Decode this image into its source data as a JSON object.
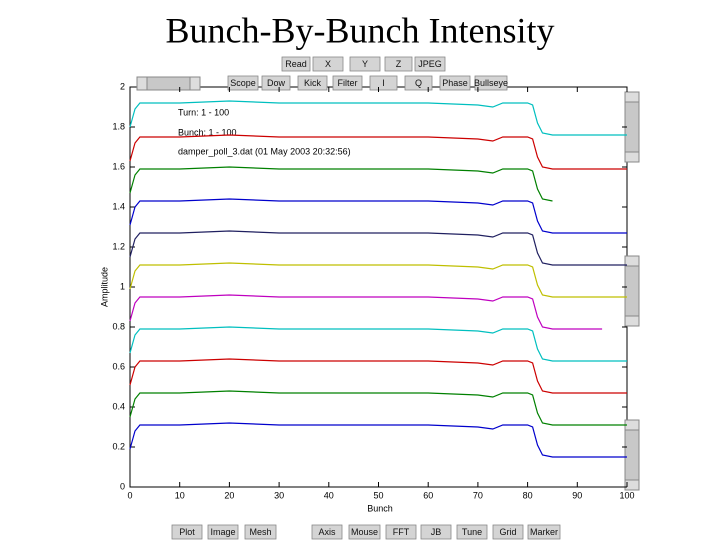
{
  "ui": {
    "top_buttons": [
      "Read",
      "X",
      "Y",
      "Z",
      "JPEG"
    ],
    "mode_buttons": [
      "Scope",
      "Dow",
      "Kick",
      "Filter",
      "I",
      "Q",
      "Phase",
      "Bullseye"
    ],
    "bottom_buttons": [
      "Plot",
      "Image",
      "Mesh",
      "Axis",
      "Mouse",
      "FFT",
      "JB",
      "Tune",
      "Grid",
      "Marker"
    ]
  },
  "chart_data": {
    "type": "line",
    "title": "Bunch-By-Bunch Intensity",
    "x_label": "Bunch",
    "y_label": "Amplitude",
    "annotations": [
      "Turn: 1 - 100",
      "Bunch: 1 - 100",
      "damper_poll_3.dat (01 May 2003 20:32:56)"
    ],
    "xlim": [
      0,
      100
    ],
    "xticks": [
      0,
      10,
      20,
      30,
      40,
      50,
      60,
      70,
      80,
      90,
      100
    ],
    "ylim": [
      0,
      2
    ],
    "yticks": [
      0,
      0.2,
      0.4,
      0.6,
      0.8,
      1,
      1.2,
      1.4,
      1.6,
      1.8,
      2
    ],
    "grid": false,
    "x": [
      0,
      1,
      2,
      10,
      20,
      30,
      40,
      50,
      60,
      70,
      73,
      75,
      80,
      81,
      82,
      83,
      85,
      90,
      95,
      100
    ],
    "series": [
      {
        "color": "#0000cc",
        "values": [
          0.19,
          0.28,
          0.31,
          0.31,
          0.32,
          0.31,
          0.31,
          0.31,
          0.31,
          0.3,
          0.29,
          0.31,
          0.31,
          0.3,
          0.21,
          0.16,
          0.15,
          0.15,
          0.15,
          0.15
        ]
      },
      {
        "color": "#008000",
        "values": [
          0.35,
          0.44,
          0.47,
          0.47,
          0.48,
          0.47,
          0.47,
          0.47,
          0.47,
          0.46,
          0.45,
          0.47,
          0.47,
          0.46,
          0.37,
          0.32,
          0.31,
          0.31,
          0.31,
          0.31
        ]
      },
      {
        "color": "#cc0000",
        "values": [
          0.51,
          0.6,
          0.63,
          0.63,
          0.64,
          0.63,
          0.63,
          0.63,
          0.63,
          0.62,
          0.61,
          0.63,
          0.63,
          0.62,
          0.53,
          0.48,
          0.47,
          0.47,
          0.47,
          0.47
        ]
      },
      {
        "color": "#00bfbf",
        "values": [
          0.67,
          0.76,
          0.79,
          0.79,
          0.8,
          0.79,
          0.79,
          0.79,
          0.79,
          0.78,
          0.77,
          0.79,
          0.79,
          0.78,
          0.69,
          0.64,
          0.63,
          0.63,
          0.63,
          0.63
        ]
      },
      {
        "color": "#bf00bf",
        "values": [
          0.83,
          0.92,
          0.95,
          0.95,
          0.96,
          0.95,
          0.95,
          0.95,
          0.95,
          0.94,
          0.93,
          0.95,
          0.95,
          0.94,
          0.85,
          0.8,
          0.79,
          0.79,
          0.79,
          null
        ]
      },
      {
        "color": "#bfbf00",
        "values": [
          0.99,
          1.08,
          1.11,
          1.11,
          1.12,
          1.11,
          1.11,
          1.11,
          1.11,
          1.1,
          1.09,
          1.11,
          1.11,
          1.1,
          1.01,
          0.96,
          0.95,
          0.95,
          0.95,
          0.95
        ]
      },
      {
        "color": "#202060",
        "values": [
          1.15,
          1.24,
          1.27,
          1.27,
          1.28,
          1.27,
          1.27,
          1.27,
          1.27,
          1.26,
          1.25,
          1.27,
          1.27,
          1.26,
          1.17,
          1.12,
          1.11,
          1.11,
          1.11,
          1.11
        ]
      },
      {
        "color": "#0000cc",
        "values": [
          1.31,
          1.4,
          1.43,
          1.43,
          1.44,
          1.43,
          1.43,
          1.43,
          1.43,
          1.42,
          1.41,
          1.43,
          1.43,
          1.42,
          1.33,
          1.28,
          1.27,
          1.27,
          1.27,
          1.27
        ]
      },
      {
        "color": "#008000",
        "values": [
          1.47,
          1.56,
          1.59,
          1.59,
          1.6,
          1.59,
          1.59,
          1.59,
          1.59,
          1.58,
          1.57,
          1.59,
          1.59,
          1.58,
          1.49,
          1.44,
          1.43,
          null,
          null,
          null
        ]
      },
      {
        "color": "#cc0000",
        "values": [
          1.63,
          1.72,
          1.75,
          1.75,
          1.76,
          1.75,
          1.75,
          1.75,
          1.75,
          1.74,
          1.73,
          1.75,
          1.75,
          1.74,
          1.65,
          1.6,
          1.59,
          1.59,
          1.59,
          1.59
        ]
      },
      {
        "color": "#00bfbf",
        "values": [
          1.8,
          1.89,
          1.92,
          1.92,
          1.93,
          1.92,
          1.92,
          1.92,
          1.92,
          1.91,
          1.9,
          1.92,
          1.92,
          1.91,
          1.82,
          1.77,
          1.76,
          1.76,
          1.76,
          1.76
        ]
      }
    ]
  }
}
